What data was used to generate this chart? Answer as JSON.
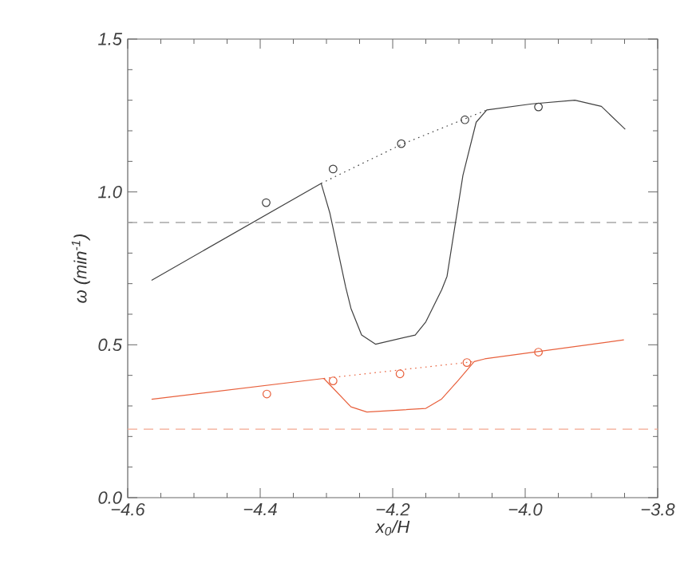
{
  "chart_data": {
    "type": "line",
    "xlabel": "x$_{0}$/H",
    "ylabel": "ω (min$^{-1}$)",
    "xlim": [
      -4.6,
      -3.8
    ],
    "xticks": [
      {
        "value": -4.6,
        "label": "−4.6"
      },
      {
        "value": -4.4,
        "label": "−4.4"
      },
      {
        "value": -4.2,
        "label": "−4.2"
      },
      {
        "value": -4.0,
        "label": "−4.0"
      },
      {
        "value": -3.8,
        "label": "−3.8"
      }
    ],
    "ylim": [
      0.0,
      1.5
    ],
    "yticks": [
      {
        "value": 0.0,
        "label": "0.0"
      },
      {
        "value": 0.5,
        "label": "0.5"
      },
      {
        "value": 1.0,
        "label": "1.0"
      },
      {
        "value": 1.5,
        "label": "1.5"
      }
    ],
    "grid": false,
    "series": [
      {
        "color": "#404040",
        "line_style": "solid",
        "x": [
          -4.564,
          -4.308,
          -4.295,
          -4.271,
          -4.263,
          -4.247,
          -4.226,
          -4.166,
          -4.15,
          -4.126,
          -4.118,
          -4.094,
          -4.074,
          -4.058,
          -3.99,
          -3.925,
          -3.885,
          -3.849
        ],
        "values": [
          0.711,
          1.028,
          0.932,
          0.689,
          0.619,
          0.532,
          0.502,
          0.532,
          0.575,
          0.68,
          0.724,
          1.054,
          1.228,
          1.268,
          1.288,
          1.3,
          1.28,
          1.205
        ]
      },
      {
        "color": "#404040",
        "line_style": "dotted",
        "x": [
          -4.308,
          -4.187,
          -4.058
        ],
        "values": [
          1.028,
          1.155,
          1.268
        ]
      },
      {
        "type": "scatter",
        "color": "#404040",
        "marker": "circle",
        "x": [
          -4.391,
          -4.29,
          -4.187,
          -4.091,
          -3.98
        ],
        "values": [
          0.965,
          1.075,
          1.158,
          1.236,
          1.278
        ]
      },
      {
        "color": "#e8603c",
        "line_style": "solid",
        "x": [
          -4.564,
          -4.304,
          -4.263,
          -4.239,
          -4.15,
          -4.126,
          -4.101,
          -4.077,
          -4.061,
          -3.851
        ],
        "values": [
          0.322,
          0.39,
          0.297,
          0.28,
          0.292,
          0.323,
          0.384,
          0.445,
          0.454,
          0.516
        ]
      },
      {
        "color": "#e8603c",
        "line_style": "dotted",
        "x": [
          -4.304,
          -4.077
        ],
        "values": [
          0.39,
          0.445
        ]
      },
      {
        "type": "scatter",
        "color": "#e8603c",
        "marker": "circle",
        "x": [
          -4.39,
          -4.29,
          -4.189,
          -4.088,
          -3.98
        ],
        "values": [
          0.339,
          0.382,
          0.405,
          0.442,
          0.476
        ]
      }
    ],
    "ref_lines": [
      {
        "axis": "y",
        "value": 0.9,
        "color": "#a8a8a8",
        "line_style": "dashed"
      },
      {
        "axis": "y",
        "value": 0.224,
        "color": "#f4a890",
        "line_style": "dashed"
      }
    ]
  }
}
